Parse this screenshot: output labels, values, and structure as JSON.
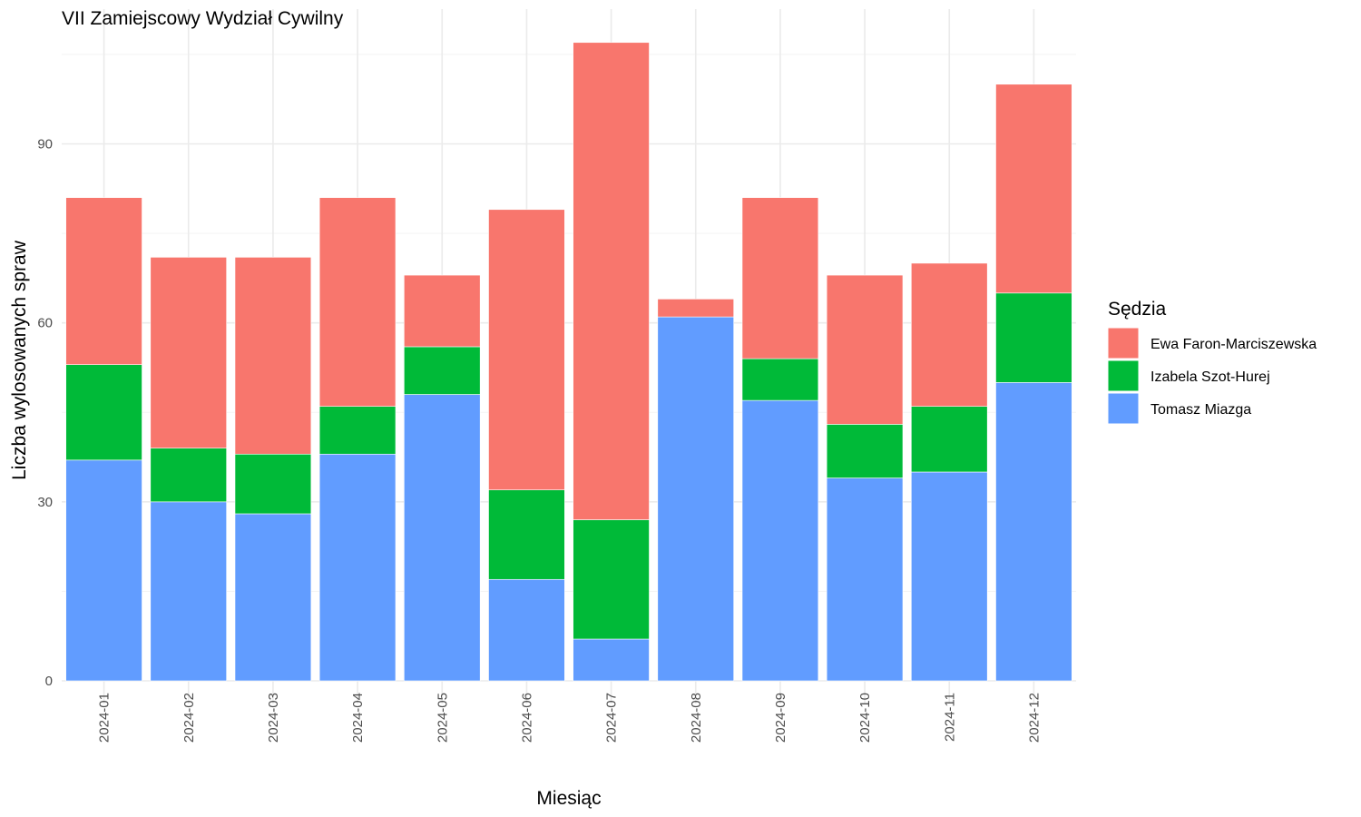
{
  "chart_data": {
    "type": "bar",
    "stacked": true,
    "title": "VII Zamiejscowy Wydział Cywilny",
    "xlabel": "Miesiąc",
    "ylabel": "Liczba wylosowanych spraw",
    "ylim": [
      0,
      110
    ],
    "yticks": [
      0,
      30,
      60,
      90
    ],
    "grid": true,
    "legend_title": "Sędzia",
    "legend_position": "right",
    "categories": [
      "2024-01",
      "2024-02",
      "2024-03",
      "2024-04",
      "2024-05",
      "2024-06",
      "2024-07",
      "2024-08",
      "2024-09",
      "2024-10",
      "2024-11",
      "2024-12"
    ],
    "series": [
      {
        "name": "Ewa Faron-Marciszewska",
        "color": "#F8766D",
        "values": [
          28,
          32,
          33,
          35,
          12,
          47,
          80,
          3,
          27,
          25,
          24,
          35
        ]
      },
      {
        "name": "Izabela Szot-Hurej",
        "color": "#00BA38",
        "values": [
          16,
          9,
          10,
          8,
          8,
          15,
          20,
          0,
          7,
          9,
          11,
          15
        ]
      },
      {
        "name": "Tomasz Miazga",
        "color": "#619CFF",
        "values": [
          37,
          30,
          28,
          38,
          48,
          17,
          7,
          61,
          47,
          34,
          35,
          50
        ]
      }
    ]
  }
}
